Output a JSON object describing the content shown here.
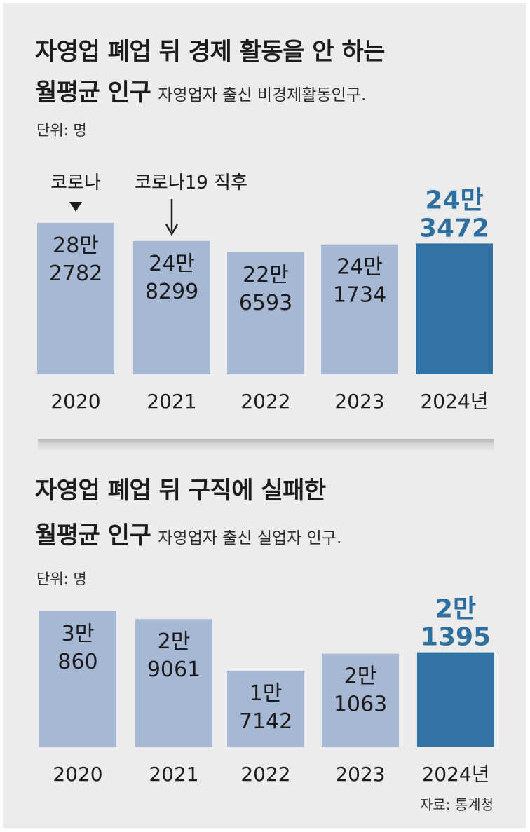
{
  "charts": [
    {
      "title_line1": "자영업 폐업 뒤 경제 활동을 안 하는",
      "title_line2": "월평균 인구",
      "subtitle": "자영업자 출신 비경제활동인구.",
      "unit": "단위: 명"
    },
    {
      "title_line1": "자영업 폐업 뒤 구직에 실패한",
      "title_line2": "월평균 인구",
      "subtitle": "자영업자 출신 실업자 인구.",
      "unit": "단위: 명"
    }
  ],
  "source": "자료: 통계청",
  "colors": {
    "bar": "#a6b8d4",
    "highlight": "#3374a6",
    "text": "#1c1c1c",
    "highlight_text": "#2e6f9f"
  },
  "chart_data": [
    {
      "type": "bar",
      "title": "자영업 폐업 뒤 경제 활동을 안 하는 월평균 인구",
      "subtitle": "자영업자 출신 비경제활동인구.",
      "unit": "단위: 명",
      "categories": [
        "2020",
        "2021",
        "2022",
        "2023",
        "2024년"
      ],
      "values": [
        282782,
        248299,
        226593,
        241734,
        243472
      ],
      "labels": [
        [
          "28만",
          "2782"
        ],
        [
          "24만",
          "8299"
        ],
        [
          "22만",
          "6593"
        ],
        [
          "24만",
          "1734"
        ],
        [
          "24만",
          "3472"
        ]
      ],
      "highlight_index": 4,
      "annotations": [
        {
          "category_index": 0,
          "text": "코로나"
        },
        {
          "category_index": 1,
          "text": "코로나19 직후"
        }
      ]
    },
    {
      "type": "bar",
      "title": "자영업 폐업 뒤 구직에 실패한 월평균 인구",
      "subtitle": "자영업자 출신 실업자 인구.",
      "unit": "단위: 명",
      "categories": [
        "2020",
        "2021",
        "2022",
        "2023",
        "2024년"
      ],
      "values": [
        30860,
        29061,
        17142,
        21063,
        21395
      ],
      "labels": [
        [
          "3만",
          "860"
        ],
        [
          "2만",
          "9061"
        ],
        [
          "1만",
          "7142"
        ],
        [
          "2만",
          "1063"
        ],
        [
          "2만",
          "1395"
        ]
      ],
      "highlight_index": 4,
      "annotations": []
    }
  ]
}
